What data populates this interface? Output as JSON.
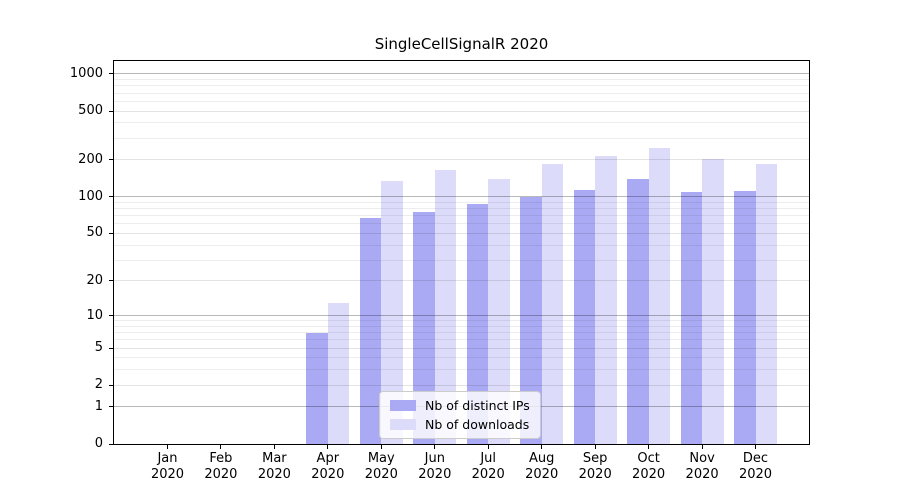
{
  "chart_data": {
    "type": "bar",
    "title": "SingleCellSignalR 2020",
    "categories": [
      "Jan",
      "Feb",
      "Mar",
      "Apr",
      "May",
      "Jun",
      "Jul",
      "Aug",
      "Sep",
      "Oct",
      "Nov",
      "Dec"
    ],
    "category_year": "2020",
    "series": [
      {
        "name": "Nb of distinct IPs",
        "color": "#aaaaf4",
        "values": [
          0,
          0,
          0,
          7,
          67,
          75,
          88,
          100,
          113,
          141,
          109,
          111
        ]
      },
      {
        "name": "Nb of downloads",
        "color": "#dcdcfa",
        "values": [
          0,
          0,
          0,
          13,
          136,
          167,
          141,
          184,
          217,
          248,
          205,
          187
        ]
      }
    ],
    "y_axis": {
      "scale": "log1p",
      "tick_labels": [
        "0",
        "1",
        "2",
        "5",
        "10",
        "20",
        "50",
        "100",
        "200",
        "500",
        "1000"
      ],
      "tick_values": [
        0,
        1,
        2,
        5,
        10,
        20,
        50,
        100,
        200,
        500,
        1000
      ],
      "decade_gridlines": [
        1,
        10,
        100,
        1000
      ],
      "minor_gridlines": [
        3,
        4,
        6,
        7,
        8,
        9,
        30,
        40,
        60,
        70,
        80,
        90,
        300,
        400,
        600,
        700,
        800,
        900
      ],
      "ylim": [
        0,
        1273
      ]
    },
    "legend": {
      "position": "lower-center"
    },
    "grid": true,
    "background": "#ffffff"
  }
}
